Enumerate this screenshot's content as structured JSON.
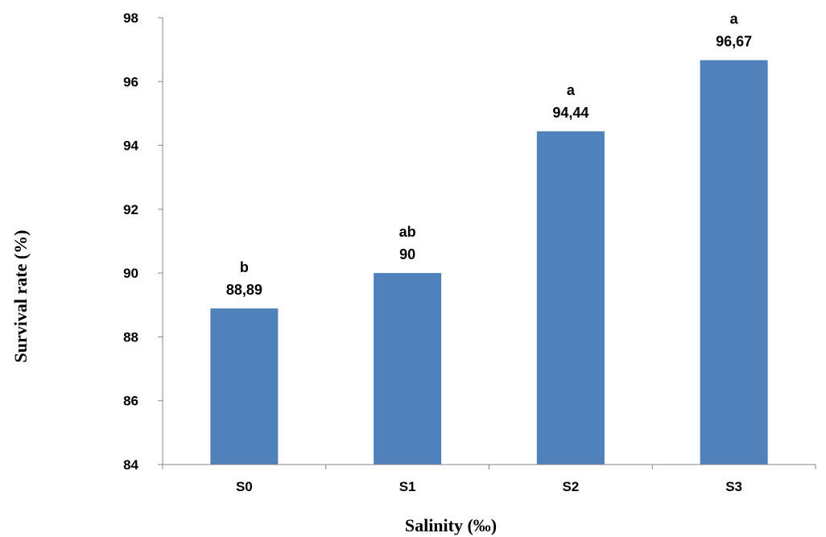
{
  "chart_data": {
    "type": "bar",
    "categories": [
      "S0",
      "S1",
      "S2",
      "S3"
    ],
    "values": [
      88.89,
      90,
      94.44,
      96.67
    ],
    "data_labels": [
      "88,89",
      "90",
      "94,44",
      "96,67"
    ],
    "significance_letters": [
      "b",
      "ab",
      "a",
      "a"
    ],
    "title": "",
    "xlabel": "Salinity (‰)",
    "ylabel": "Survival rate (%)",
    "ylim": [
      84,
      98
    ],
    "yticks": [
      84,
      86,
      88,
      90,
      92,
      94,
      96,
      98
    ],
    "grid": false,
    "legend": "none",
    "bar_color": "#4f81bd"
  }
}
